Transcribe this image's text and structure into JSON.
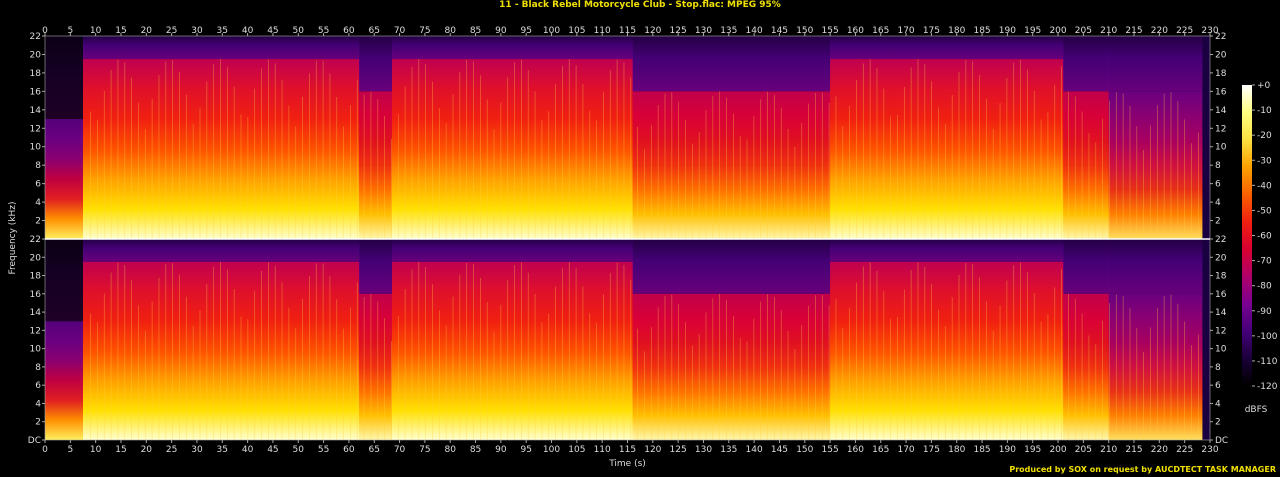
{
  "title": "11 - Black Rebel Motorcycle Club - Stop.flac: MPEG 95%",
  "footer": "Produced by SOX on request by AUCDTECT TASK MANAGER",
  "colors": {
    "title": "#f0e000",
    "footer": "#f0e000",
    "background": "#000000"
  },
  "chart_data": {
    "type": "heatmap",
    "xlabel": "Time (s)",
    "ylabel": "Frequency (kHz)",
    "xlim": [
      0,
      230
    ],
    "ylim": [
      0,
      22
    ],
    "x_ticks": [
      "0",
      "5",
      "10",
      "15",
      "20",
      "25",
      "30",
      "35",
      "40",
      "45",
      "50",
      "55",
      "60",
      "65",
      "70",
      "75",
      "80",
      "85",
      "90",
      "95",
      "100",
      "105",
      "110",
      "115",
      "120",
      "125",
      "130",
      "135",
      "140",
      "145",
      "150",
      "155",
      "160",
      "165",
      "170",
      "175",
      "180",
      "185",
      "190",
      "195",
      "200",
      "205",
      "210",
      "215",
      "220",
      "225",
      "230"
    ],
    "y_ticks": [
      "DC",
      "2",
      "4",
      "6",
      "8",
      "10",
      "12",
      "14",
      "16",
      "18",
      "20",
      "22"
    ],
    "channels": [
      "channel-1",
      "channel-2"
    ],
    "colorbar": {
      "label": "dBFS",
      "ticks": [
        "+0",
        "-10",
        "-20",
        "-30",
        "-40",
        "-50",
        "-60",
        "-70",
        "-80",
        "-90",
        "-100",
        "-110",
        "-120"
      ],
      "range": [
        -120,
        0
      ],
      "stops": [
        "#000000",
        "#1a0038",
        "#44007a",
        "#7a0090",
        "#b0006a",
        "#d80030",
        "#f02010",
        "#f86000",
        "#fba000",
        "#fde040",
        "#ffff80",
        "#ffffff"
      ]
    },
    "segments": [
      {
        "start": 0,
        "end": 7.5,
        "cutoff_khz": 13,
        "level": "quiet"
      },
      {
        "start": 7.5,
        "end": 62,
        "cutoff_khz": 19.5,
        "level": "loud"
      },
      {
        "start": 62,
        "end": 68.5,
        "cutoff_khz": 16,
        "level": "medium"
      },
      {
        "start": 68.5,
        "end": 116,
        "cutoff_khz": 19.5,
        "level": "loud"
      },
      {
        "start": 116,
        "end": 155,
        "cutoff_khz": 16,
        "level": "medium"
      },
      {
        "start": 155,
        "end": 201,
        "cutoff_khz": 19.5,
        "level": "loud"
      },
      {
        "start": 201,
        "end": 210,
        "cutoff_khz": 16,
        "level": "medium"
      },
      {
        "start": 210,
        "end": 229.5,
        "cutoff_khz": 16,
        "level": "fade"
      }
    ]
  }
}
